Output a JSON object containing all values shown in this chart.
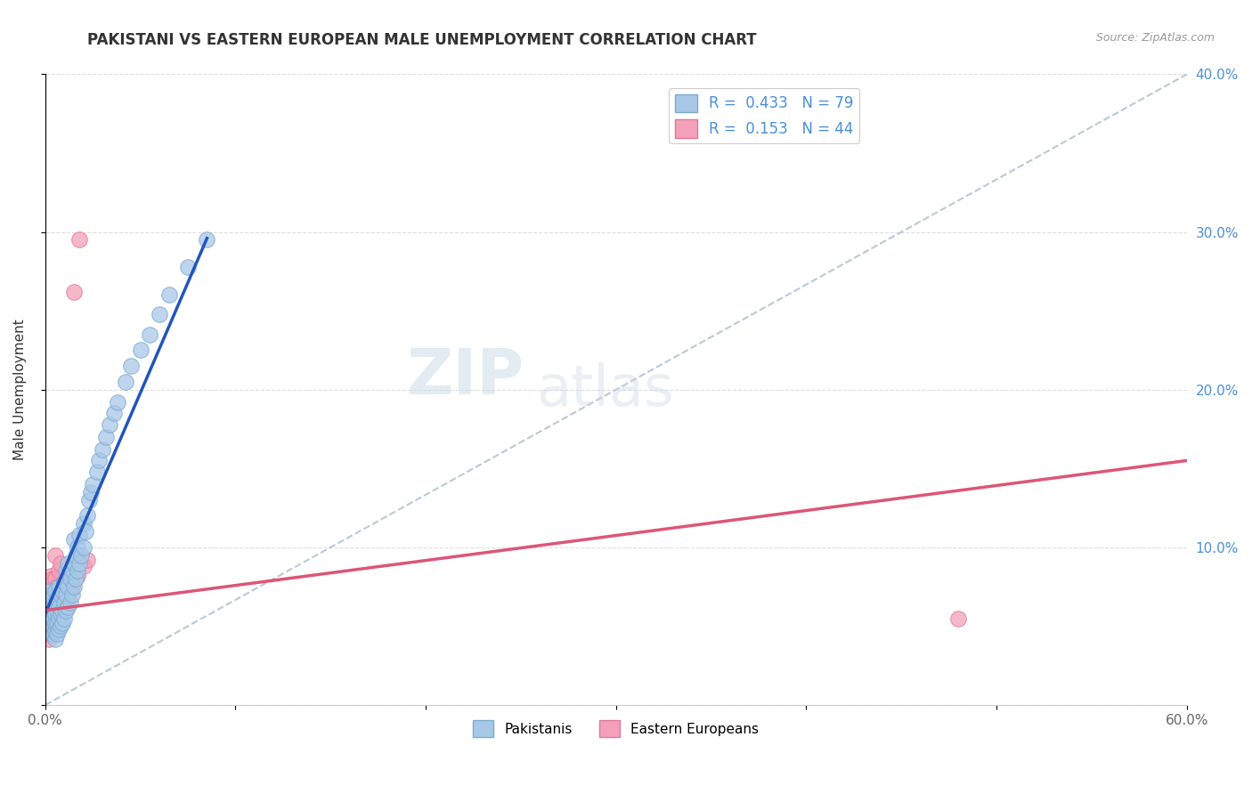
{
  "title": "PAKISTANI VS EASTERN EUROPEAN MALE UNEMPLOYMENT CORRELATION CHART",
  "source": "Source: ZipAtlas.com",
  "ylabel": "Male Unemployment",
  "xlim": [
    0.0,
    0.6
  ],
  "ylim": [
    0.0,
    0.4
  ],
  "xticks": [
    0.0,
    0.1,
    0.2,
    0.3,
    0.4,
    0.5,
    0.6
  ],
  "yticks": [
    0.0,
    0.1,
    0.2,
    0.3,
    0.4
  ],
  "xtick_labels": [
    "0.0%",
    "",
    "",
    "",
    "",
    "",
    "60.0%"
  ],
  "ytick_labels": [
    "",
    "10.0%",
    "20.0%",
    "30.0%",
    "40.0%"
  ],
  "pakistani_color": "#A8C8E8",
  "eastern_color": "#F4A0B8",
  "pakistani_edge": "#7AAAD0",
  "eastern_edge": "#E07898",
  "blue_line_color": "#2255BB",
  "pink_line_color": "#DD5577",
  "ref_line_color": "#AABBCC",
  "legend_R1": "R =  0.433",
  "legend_N1": "N = 79",
  "legend_R2": "R =  0.153",
  "legend_N2": "N = 44",
  "watermark_zip": "ZIP",
  "watermark_atlas": "atlas",
  "pakistani_x": [
    0.001,
    0.001,
    0.002,
    0.002,
    0.002,
    0.002,
    0.003,
    0.003,
    0.003,
    0.004,
    0.004,
    0.004,
    0.004,
    0.004,
    0.005,
    0.005,
    0.005,
    0.005,
    0.005,
    0.005,
    0.006,
    0.006,
    0.006,
    0.006,
    0.007,
    0.007,
    0.007,
    0.007,
    0.008,
    0.008,
    0.008,
    0.009,
    0.009,
    0.009,
    0.01,
    0.01,
    0.01,
    0.011,
    0.011,
    0.011,
    0.012,
    0.012,
    0.012,
    0.013,
    0.013,
    0.014,
    0.014,
    0.015,
    0.015,
    0.015,
    0.016,
    0.016,
    0.017,
    0.017,
    0.018,
    0.018,
    0.019,
    0.02,
    0.02,
    0.021,
    0.022,
    0.023,
    0.024,
    0.025,
    0.027,
    0.028,
    0.03,
    0.032,
    0.034,
    0.036,
    0.038,
    0.042,
    0.045,
    0.05,
    0.055,
    0.06,
    0.065,
    0.075,
    0.085
  ],
  "pakistani_y": [
    0.055,
    0.06,
    0.05,
    0.058,
    0.062,
    0.07,
    0.048,
    0.053,
    0.072,
    0.045,
    0.05,
    0.055,
    0.06,
    0.068,
    0.042,
    0.047,
    0.052,
    0.058,
    0.065,
    0.072,
    0.045,
    0.052,
    0.06,
    0.068,
    0.048,
    0.055,
    0.062,
    0.075,
    0.05,
    0.058,
    0.07,
    0.052,
    0.06,
    0.072,
    0.055,
    0.065,
    0.078,
    0.06,
    0.07,
    0.085,
    0.062,
    0.075,
    0.09,
    0.065,
    0.08,
    0.07,
    0.085,
    0.075,
    0.09,
    0.105,
    0.08,
    0.095,
    0.085,
    0.1,
    0.09,
    0.108,
    0.095,
    0.1,
    0.115,
    0.11,
    0.12,
    0.13,
    0.135,
    0.14,
    0.148,
    0.155,
    0.162,
    0.17,
    0.178,
    0.185,
    0.192,
    0.205,
    0.215,
    0.225,
    0.235,
    0.248,
    0.26,
    0.278,
    0.295
  ],
  "eastern_x": [
    0.001,
    0.001,
    0.001,
    0.002,
    0.002,
    0.002,
    0.002,
    0.003,
    0.003,
    0.003,
    0.003,
    0.003,
    0.004,
    0.004,
    0.004,
    0.004,
    0.005,
    0.005,
    0.005,
    0.005,
    0.005,
    0.006,
    0.006,
    0.006,
    0.007,
    0.007,
    0.007,
    0.008,
    0.008,
    0.008,
    0.009,
    0.009,
    0.01,
    0.01,
    0.011,
    0.012,
    0.013,
    0.014,
    0.015,
    0.017,
    0.018,
    0.02,
    0.022,
    0.48
  ],
  "eastern_y": [
    0.045,
    0.052,
    0.06,
    0.042,
    0.05,
    0.058,
    0.068,
    0.045,
    0.052,
    0.06,
    0.07,
    0.082,
    0.048,
    0.055,
    0.065,
    0.08,
    0.05,
    0.058,
    0.068,
    0.08,
    0.095,
    0.052,
    0.062,
    0.075,
    0.055,
    0.065,
    0.085,
    0.058,
    0.068,
    0.09,
    0.06,
    0.075,
    0.062,
    0.078,
    0.065,
    0.068,
    0.072,
    0.075,
    0.262,
    0.082,
    0.295,
    0.088,
    0.092,
    0.055
  ],
  "blue_line_x": [
    0.0,
    0.085
  ],
  "blue_line_y_intercept": 0.058,
  "blue_line_slope": 2.8,
  "pink_line_x": [
    0.0,
    0.6
  ],
  "pink_line_y_start": 0.06,
  "pink_line_y_end": 0.155,
  "ref_line_x": [
    0.0,
    0.6
  ],
  "ref_line_y": [
    0.0,
    0.4
  ]
}
